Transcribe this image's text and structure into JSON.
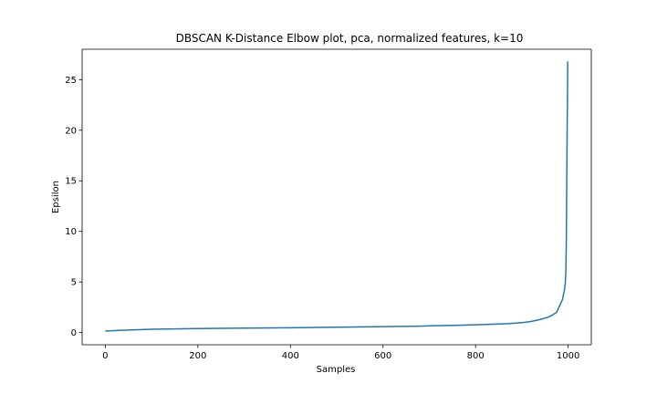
{
  "chart_data": {
    "type": "line",
    "title": "DBSCAN K-Distance Elbow plot, pca, normalized features, k=10",
    "xlabel": "Samples",
    "ylabel": "Epsilon",
    "xlim": [
      -50,
      1050
    ],
    "ylim": [
      -1.2,
      28.0
    ],
    "xticks": [
      0,
      200,
      400,
      600,
      800,
      1000
    ],
    "yticks": [
      0,
      5,
      10,
      15,
      20,
      25
    ],
    "grid": false,
    "legend": "none",
    "line_color": "#1f77b4",
    "series": [
      {
        "x": [
          0,
          20,
          50,
          100,
          200,
          300,
          400,
          500,
          600,
          680,
          700,
          750,
          800,
          850,
          870,
          880,
          900,
          920,
          940,
          955,
          965,
          970,
          975,
          980,
          985,
          988,
          990,
          992,
          994,
          995,
          996,
          997,
          997.5,
          998,
          998.5,
          999
        ],
        "y": [
          0.15,
          0.2,
          0.25,
          0.33,
          0.4,
          0.44,
          0.48,
          0.53,
          0.59,
          0.64,
          0.67,
          0.71,
          0.77,
          0.85,
          0.88,
          0.92,
          0.98,
          1.1,
          1.3,
          1.5,
          1.7,
          1.85,
          2.0,
          2.5,
          3.0,
          3.3,
          3.8,
          4.2,
          5.0,
          6.0,
          9.0,
          15.0,
          18.0,
          21.0,
          23.0,
          26.8
        ]
      }
    ]
  }
}
